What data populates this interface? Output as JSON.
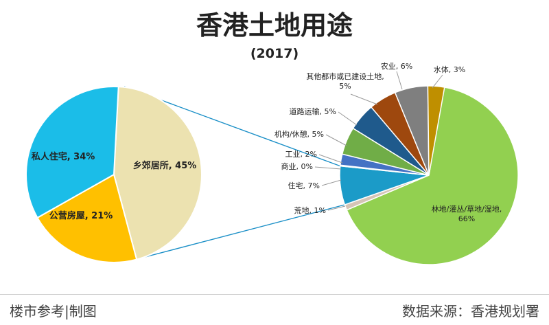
{
  "header": {
    "title": "香港土地用途",
    "subtitle": "(2017)"
  },
  "footer": {
    "left": "楼市参考|制图",
    "right": "数据来源：香港规划署"
  },
  "chart_data": [
    {
      "type": "pie",
      "slices": [
        {
          "label": "林地/灌丛/草地/湿地,",
          "label2": "66%",
          "value": 66,
          "color": "#92d050"
        },
        {
          "label": "荒地, 1%",
          "value": 1,
          "color": "#d5c4b6"
        },
        {
          "label": "住宅, 7%",
          "value": 7,
          "color": "#1b9bc8"
        },
        {
          "label": "商业, 0%",
          "value": 0,
          "color": "#1f4e79"
        },
        {
          "label": "工业, 2%",
          "value": 2,
          "color": "#4472c4"
        },
        {
          "label": "机构/休憩, 5%",
          "value": 5,
          "color": "#70ad47"
        },
        {
          "label": "道路运输, 5%",
          "value": 5,
          "color": "#1f5a8c"
        },
        {
          "label": "其他都市或已建设土地,",
          "label2": "5%",
          "value": 5,
          "color": "#9e480e"
        },
        {
          "label": "农业, 6%",
          "value": 6,
          "color": "#7f7f7f"
        },
        {
          "label": "水体, 3%",
          "value": 3,
          "color": "#bf8f00"
        }
      ]
    },
    {
      "type": "pie",
      "slices": [
        {
          "label": "乡郊居所, 45%",
          "value": 45,
          "color": "#ece2b0"
        },
        {
          "label": "公营房屋, 21%",
          "value": 21,
          "color": "#ffc000"
        },
        {
          "label": "私人住宅, 34%",
          "value": 34,
          "color": "#1bbde8"
        }
      ]
    }
  ]
}
